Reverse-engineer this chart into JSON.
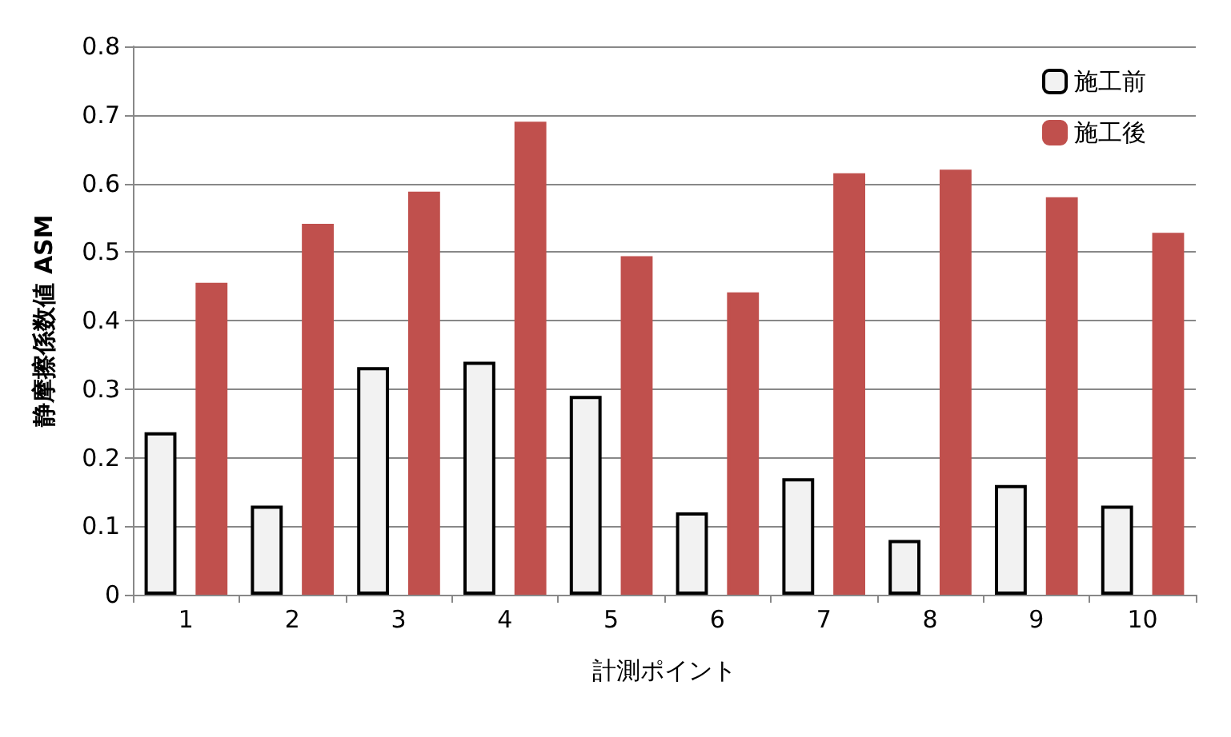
{
  "chart_data": {
    "type": "bar",
    "xlabel": "計測ポイント",
    "ylabel": "静摩擦係数値 ASM",
    "categories": [
      "1",
      "2",
      "3",
      "4",
      "5",
      "6",
      "7",
      "8",
      "9",
      "10"
    ],
    "series": [
      {
        "name": "施工前",
        "color": "#f2f2f2",
        "values": [
          0.237,
          0.13,
          0.332,
          0.34,
          0.29,
          0.12,
          0.17,
          0.08,
          0.16,
          0.13
        ]
      },
      {
        "name": "施工後",
        "color": "#c0504d",
        "values": [
          0.455,
          0.541,
          0.588,
          0.69,
          0.494,
          0.441,
          0.615,
          0.62,
          0.58,
          0.528
        ]
      }
    ],
    "ylim": [
      0,
      0.8
    ],
    "yticks": [
      0,
      0.1,
      0.2,
      0.3,
      0.4,
      0.5,
      0.6,
      0.7,
      0.8
    ],
    "grid": "y",
    "legend": "top right"
  }
}
